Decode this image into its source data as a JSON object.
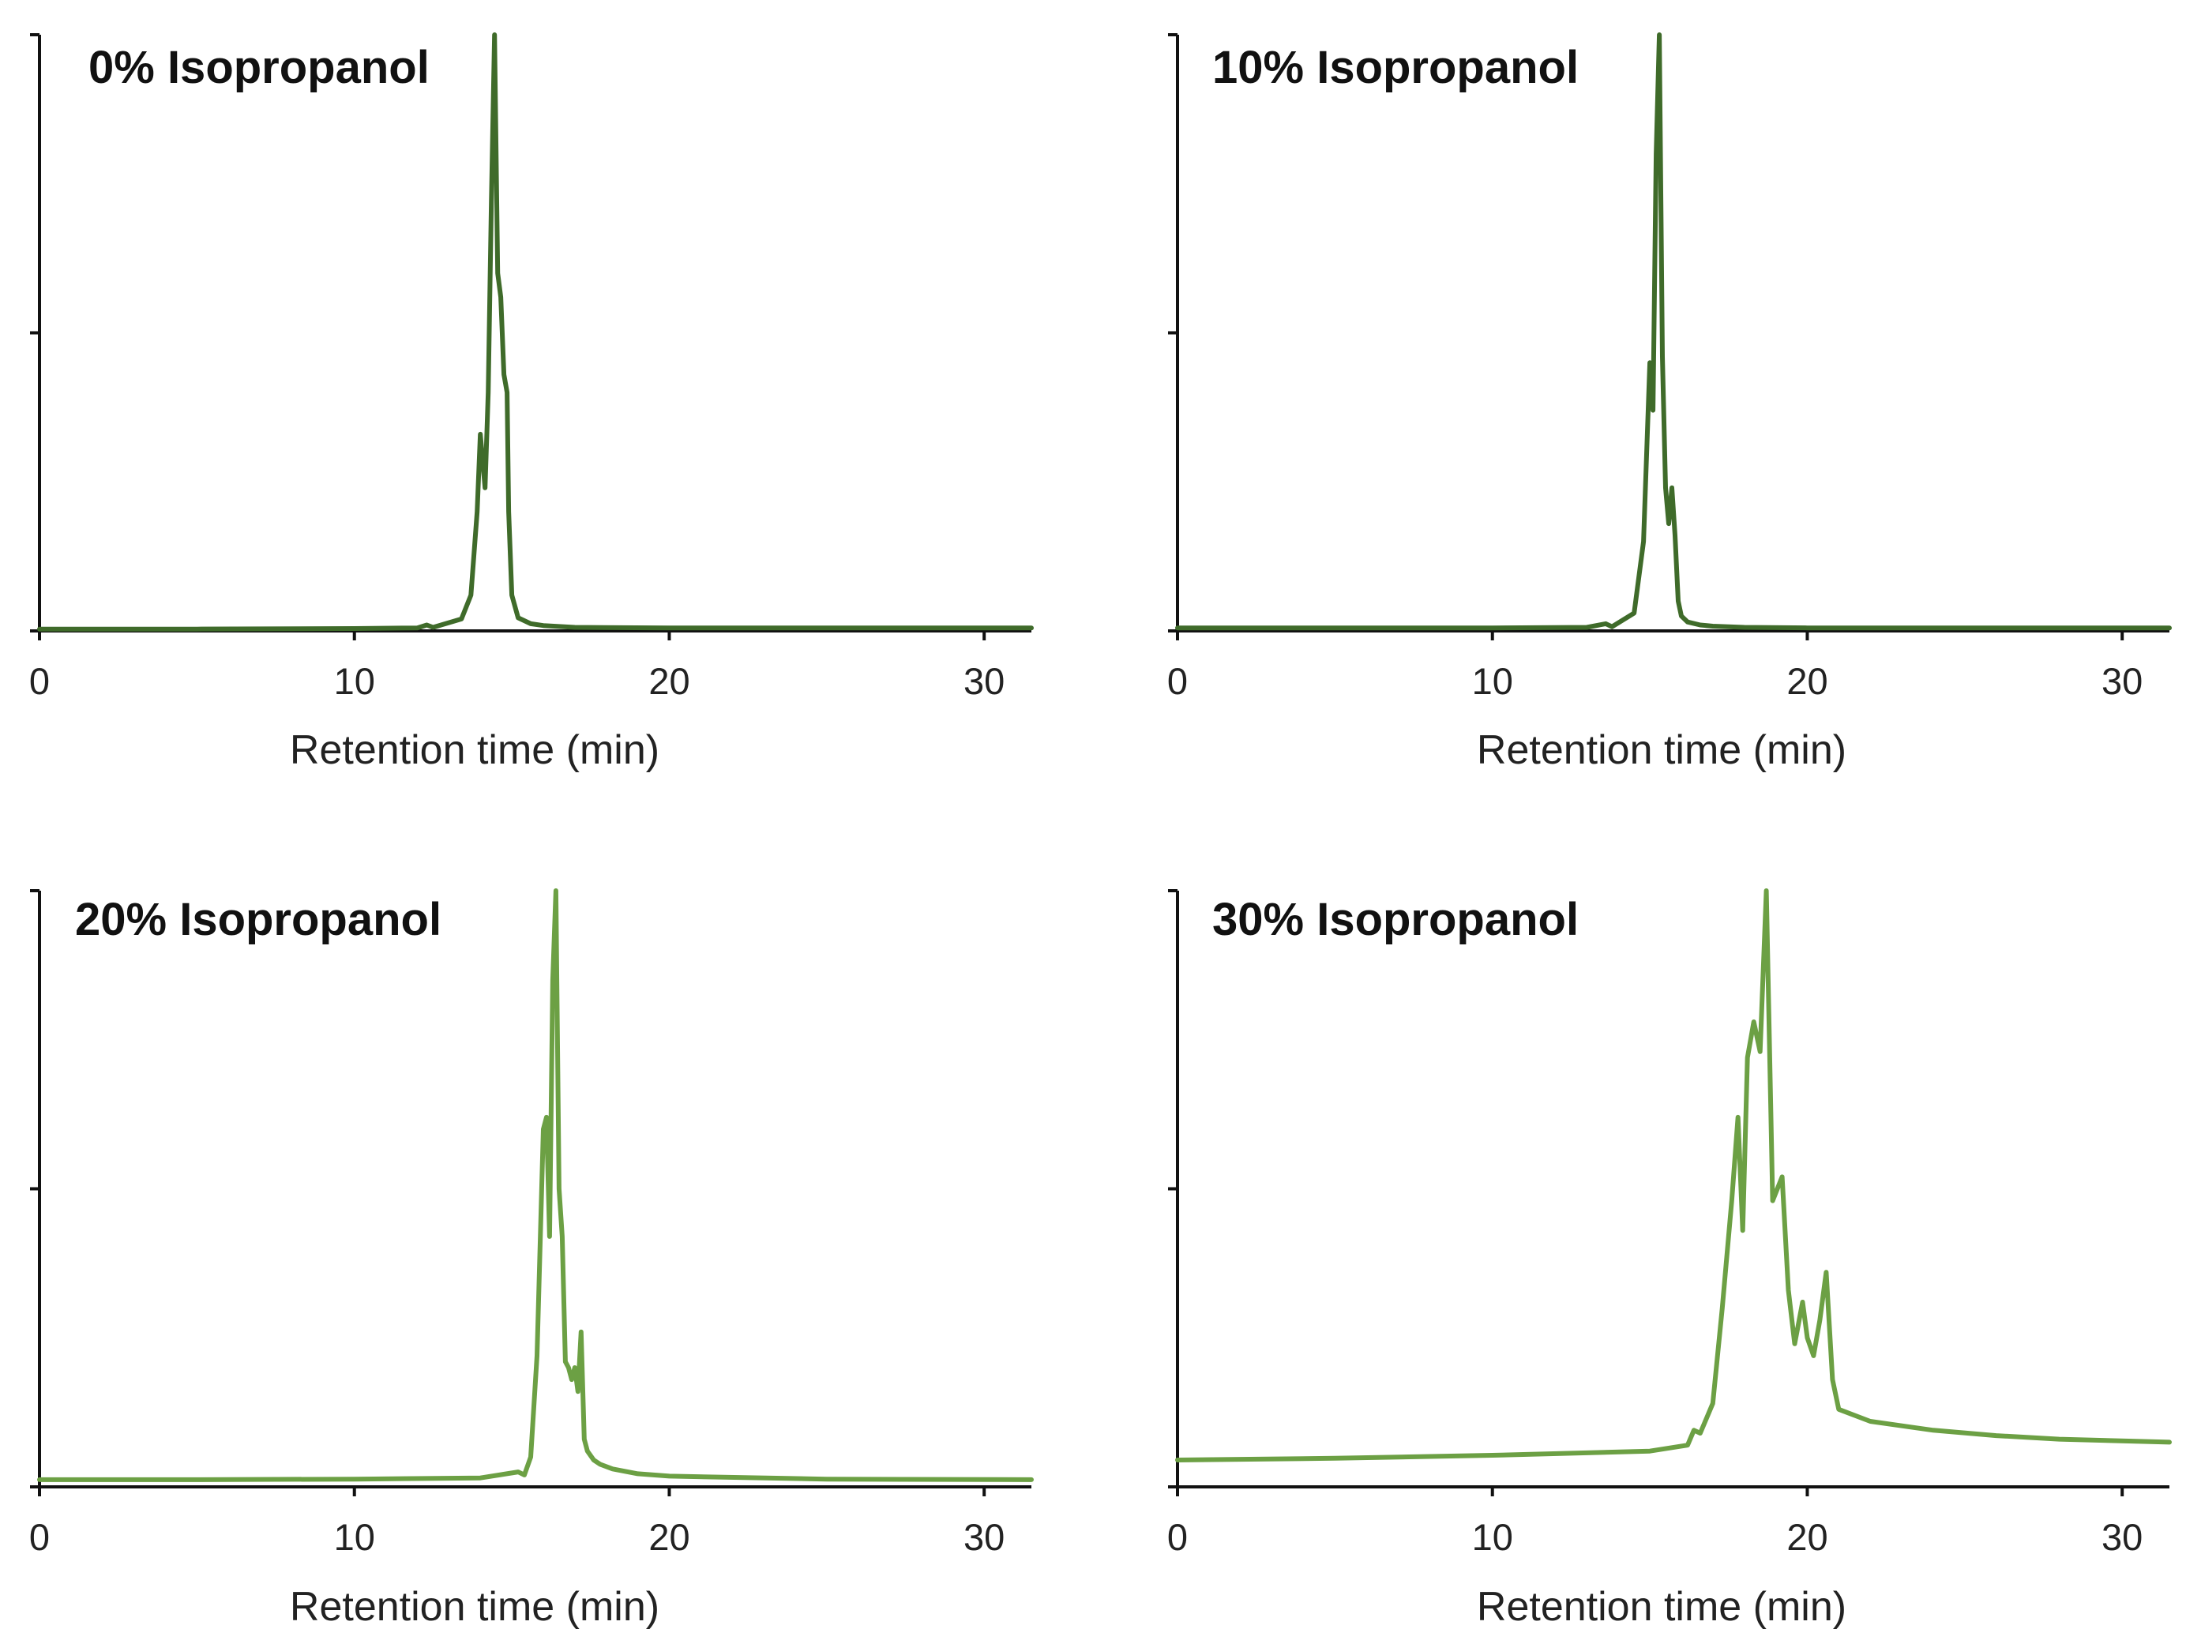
{
  "chart_data": [
    {
      "type": "line",
      "title": "0% Isopropanol",
      "xlabel": "Retention time (min)",
      "ylabel": "",
      "xlim": [
        0,
        31.5
      ],
      "ylim": [
        0,
        100
      ],
      "xticks": [
        0,
        10,
        20,
        30
      ],
      "xtick_labels": [
        "0",
        "10",
        "20",
        "30"
      ],
      "yticks": [
        0,
        50,
        100
      ],
      "grid": false,
      "legend": "none",
      "color": "#3f6b2a",
      "series": [
        {
          "x": [
            0,
            5,
            10,
            12,
            12.3,
            12.5,
            13.4,
            13.7,
            13.9,
            14.0,
            14.15,
            14.25,
            14.35,
            14.45,
            14.55,
            14.65,
            14.75,
            14.85,
            14.9,
            15.0,
            15.2,
            15.6,
            16,
            17,
            20,
            25,
            31.5
          ],
          "y": [
            0.3,
            0.3,
            0.4,
            0.5,
            1.0,
            0.6,
            2,
            6,
            20,
            33,
            24,
            40,
            72,
            100,
            60,
            56,
            43,
            40,
            20,
            6,
            2.2,
            1.2,
            0.9,
            0.6,
            0.5,
            0.5,
            0.5
          ]
        }
      ]
    },
    {
      "type": "line",
      "title": "10% Isopropanol",
      "xlabel": "Retention time (min)",
      "ylabel": "",
      "xlim": [
        0,
        31.5
      ],
      "ylim": [
        0,
        100
      ],
      "xticks": [
        0,
        10,
        20,
        30
      ],
      "xtick_labels": [
        "0",
        "10",
        "20",
        "30"
      ],
      "yticks": [
        0,
        50,
        100
      ],
      "grid": false,
      "legend": "none",
      "color": "#3f6b2a",
      "series": [
        {
          "x": [
            0,
            5,
            10,
            13,
            13.6,
            13.8,
            14.5,
            14.8,
            15.0,
            15.1,
            15.2,
            15.3,
            15.4,
            15.5,
            15.6,
            15.7,
            15.8,
            15.9,
            16.0,
            16.2,
            16.6,
            17,
            18,
            20,
            25,
            31.5
          ],
          "y": [
            0.5,
            0.5,
            0.5,
            0.6,
            1.2,
            0.7,
            3,
            15,
            45,
            37,
            80,
            100,
            46,
            24,
            18,
            24,
            16,
            5,
            2.5,
            1.5,
            1.0,
            0.8,
            0.6,
            0.5,
            0.5,
            0.5
          ]
        }
      ]
    },
    {
      "type": "line",
      "title": "20% Isopropanol",
      "xlabel": "Retention time (min)",
      "ylabel": "",
      "xlim": [
        0,
        31.5
      ],
      "ylim": [
        0,
        100
      ],
      "xticks": [
        0,
        10,
        20,
        30
      ],
      "xtick_labels": [
        "0",
        "10",
        "20",
        "30"
      ],
      "yticks": [
        0,
        50,
        100
      ],
      "grid": false,
      "legend": "none",
      "color": "#6ca044",
      "series": [
        {
          "x": [
            0,
            5,
            10,
            14,
            15.2,
            15.4,
            15.6,
            15.8,
            16.0,
            16.1,
            16.2,
            16.3,
            16.4,
            16.5,
            16.6,
            16.7,
            16.8,
            16.9,
            17.0,
            17.1,
            17.2,
            17.3,
            17.4,
            17.6,
            17.8,
            18.2,
            19,
            20,
            25,
            31.5
          ],
          "y": [
            1.2,
            1.2,
            1.3,
            1.5,
            2.5,
            2.0,
            5,
            22,
            60,
            62,
            42,
            85,
            100,
            50,
            42,
            21,
            20,
            18,
            20,
            16,
            26,
            8,
            6,
            4.5,
            3.8,
            3.0,
            2.2,
            1.8,
            1.3,
            1.2
          ]
        }
      ]
    },
    {
      "type": "line",
      "title": "30% Isopropanol",
      "xlabel": "Retention time (min)",
      "ylabel": "",
      "xlim": [
        0,
        31.5
      ],
      "ylim": [
        0,
        100
      ],
      "xticks": [
        0,
        10,
        20,
        30
      ],
      "xtick_labels": [
        "0",
        "10",
        "20",
        "30"
      ],
      "yticks": [
        0,
        50,
        100
      ],
      "grid": false,
      "legend": "none",
      "color": "#6ca044",
      "series": [
        {
          "x": [
            0,
            5,
            10,
            15,
            16.2,
            16.4,
            16.6,
            17.0,
            17.3,
            17.6,
            17.8,
            17.95,
            18.1,
            18.3,
            18.5,
            18.7,
            18.9,
            19.2,
            19.4,
            19.6,
            19.85,
            20.0,
            20.2,
            20.4,
            20.6,
            20.8,
            21.0,
            22,
            24,
            26,
            28,
            31.5
          ],
          "y": [
            4.5,
            4.8,
            5.3,
            6.0,
            7.0,
            9.5,
            9.0,
            14,
            30,
            48,
            62,
            43,
            72,
            78,
            73,
            100,
            48,
            52,
            33,
            24,
            31,
            25,
            22,
            28,
            36,
            18,
            13,
            11,
            9.5,
            8.6,
            8.0,
            7.5
          ]
        }
      ]
    }
  ]
}
